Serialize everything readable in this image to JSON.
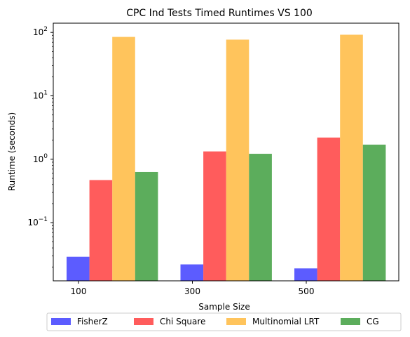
{
  "chart_data": {
    "type": "bar",
    "title": "CPC Ind Tests Timed Runtimes VS 100",
    "xlabel": "Sample Size",
    "ylabel": "Runtime (seconds)",
    "yscale": "log",
    "ylim": [
      0.0121,
      140
    ],
    "categories": [
      "100",
      "300",
      "500"
    ],
    "y_ticks": [
      {
        "value": 0.1,
        "label": "10",
        "exp": "−1"
      },
      {
        "value": 1,
        "label": "10",
        "exp": "0"
      },
      {
        "value": 10,
        "label": "10",
        "exp": "1"
      },
      {
        "value": 100,
        "label": "10",
        "exp": "2"
      }
    ],
    "legend_position": "bottom-center",
    "grid": false,
    "series": [
      {
        "name": "FisherZ",
        "color": "#3333ff",
        "values": [
          0.029,
          0.022,
          0.019
        ]
      },
      {
        "name": "Chi Square",
        "color": "#ff3333",
        "values": [
          0.47,
          1.33,
          2.2
        ]
      },
      {
        "name": "Multinomial LRT",
        "color": "#ffb533",
        "values": [
          85,
          77,
          92
        ]
      },
      {
        "name": "CG",
        "color": "#339933",
        "values": [
          0.63,
          1.22,
          1.7
        ]
      }
    ]
  }
}
